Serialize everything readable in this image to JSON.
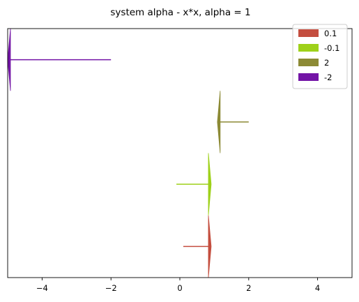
{
  "chart_data": {
    "type": "arrow",
    "title": "system alpha - x*x, alpha = 1",
    "xlabel": "",
    "ylabel": "",
    "xlim": [
      -5,
      5
    ],
    "ylim": [
      0,
      4
    ],
    "xticks": [
      -4,
      -2,
      0,
      2,
      4
    ],
    "xtick_labels": [
      "−4",
      "−2",
      "0",
      "2",
      "4"
    ],
    "yticks_visible": false,
    "grid": false,
    "legend_position": "top-right",
    "series": [
      {
        "name": "0.1",
        "color": "#c44e3f",
        "x_start": 0.1,
        "x_end": 0.91,
        "y": 0.5,
        "head_half_height": 0.5
      },
      {
        "name": "-0.1",
        "color": "#9ed11a",
        "x_start": -0.1,
        "x_end": 0.91,
        "y": 1.5,
        "head_half_height": 0.5
      },
      {
        "name": "2",
        "color": "#8c8a35",
        "x_start": 2.0,
        "x_end": 1.09,
        "y": 2.5,
        "head_half_height": 0.5
      },
      {
        "name": "-2",
        "color": "#7314a6",
        "x_start": -2.0,
        "x_end": -5.0,
        "y": 3.5,
        "head_half_height": 0.5
      }
    ]
  }
}
